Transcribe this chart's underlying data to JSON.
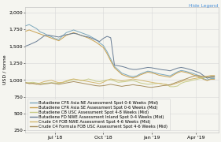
{
  "hide_legend_text": "Hide Legend",
  "ylabel": "USD / tonne",
  "yticks": [
    250,
    500,
    750,
    1000,
    1250,
    1500,
    1750,
    2000
  ],
  "ylim": [
    220,
    2080
  ],
  "xtick_labels": [
    "Jul '18",
    "Oct '18",
    "Jan '19",
    "Apr '19"
  ],
  "xtick_positions": [
    8,
    21,
    34,
    46
  ],
  "xlim": [
    0,
    52
  ],
  "background_color": "#f5f5f0",
  "plot_bg_color": "#f5f5f0",
  "grid_color": "#d8d8d8",
  "series": [
    {
      "label": "Butadiene CFR Asia NE Assessment Spot 0-6 Weeks (Mid)",
      "color": "#7ba7bc",
      "linewidth": 0.7,
      "data_x": [
        0,
        1,
        2,
        3,
        4,
        5,
        6,
        7,
        8,
        9,
        10,
        11,
        12,
        13,
        14,
        15,
        16,
        17,
        18,
        19,
        20,
        21,
        22,
        23,
        24,
        25,
        26,
        27,
        28,
        29,
        30,
        31,
        32,
        33,
        34,
        35,
        36,
        37,
        38,
        39,
        40,
        41,
        42,
        43,
        44,
        45,
        46,
        47,
        48,
        49,
        50,
        51
      ],
      "data_y": [
        1800,
        1820,
        1790,
        1760,
        1710,
        1690,
        1660,
        1640,
        1610,
        1600,
        1650,
        1700,
        1720,
        1740,
        1720,
        1700,
        1680,
        1660,
        1630,
        1600,
        1550,
        1510,
        1420,
        1310,
        1200,
        1150,
        1100,
        1080,
        1060,
        1050,
        1060,
        1090,
        1110,
        1130,
        1120,
        1105,
        1090,
        1080,
        1070,
        1060,
        1090,
        1120,
        1140,
        1130,
        1115,
        1100,
        1080,
        1060,
        1020,
        1000,
        1020,
        1020
      ]
    },
    {
      "label": "Butadiene CFR Asia SE Assessment Spot 0-6 Weeks (Mid)",
      "color": "#c8a050",
      "linewidth": 0.7,
      "data_x": [
        0,
        1,
        2,
        3,
        4,
        5,
        6,
        7,
        8,
        9,
        10,
        11,
        12,
        13,
        14,
        15,
        16,
        17,
        18,
        19,
        20,
        21,
        22,
        23,
        24,
        25,
        26,
        27,
        28,
        29,
        30,
        31,
        32,
        33,
        34,
        35,
        36,
        37,
        38,
        39,
        40,
        41,
        42,
        43,
        44,
        45,
        46,
        47,
        48,
        49,
        50,
        51
      ],
      "data_y": [
        1720,
        1740,
        1720,
        1700,
        1680,
        1660,
        1640,
        1620,
        1600,
        1580,
        1620,
        1660,
        1680,
        1700,
        1680,
        1660,
        1640,
        1620,
        1590,
        1560,
        1520,
        1480,
        1390,
        1280,
        1180,
        1130,
        1080,
        1060,
        1040,
        1030,
        1045,
        1075,
        1095,
        1115,
        1105,
        1090,
        1070,
        1060,
        1050,
        1040,
        1075,
        1105,
        1125,
        1115,
        1100,
        1080,
        1060,
        1040,
        1010,
        990,
        1010,
        1010
      ]
    },
    {
      "label": "Butadiene CB USC Assessment Spot 4-8 Weeks (Mid)",
      "color": "#c8cc88",
      "linewidth": 0.7,
      "data_x": [
        0,
        1,
        2,
        3,
        4,
        5,
        6,
        7,
        8,
        9,
        10,
        11,
        12,
        13,
        14,
        15,
        16,
        17,
        18,
        19,
        20,
        21,
        22,
        23,
        24,
        25,
        26,
        27,
        28,
        29,
        30,
        31,
        32,
        33,
        34,
        35,
        36,
        37,
        38,
        39,
        40,
        41,
        42,
        43,
        44,
        45,
        46,
        47,
        48,
        49,
        50,
        51
      ],
      "data_y": [
        960,
        960,
        965,
        955,
        945,
        950,
        955,
        960,
        955,
        950,
        960,
        975,
        990,
        1005,
        1000,
        990,
        1000,
        1015,
        1000,
        980,
        975,
        985,
        1000,
        1000,
        985,
        965,
        970,
        975,
        985,
        990,
        975,
        955,
        945,
        935,
        940,
        945,
        950,
        940,
        935,
        900,
        900,
        910,
        950,
        970,
        980,
        995,
        1005,
        1020,
        1035,
        1035,
        1035,
        1040
      ]
    },
    {
      "label": "Butadiene FD NWE Assessment Inland Spot 0-4 Weeks (Mid)",
      "color": "#687c94",
      "linewidth": 0.7,
      "data_x": [
        0,
        1,
        2,
        3,
        4,
        5,
        6,
        7,
        8,
        9,
        10,
        11,
        12,
        13,
        14,
        15,
        16,
        17,
        18,
        19,
        20,
        21,
        22,
        23,
        24,
        25,
        26,
        27,
        28,
        29,
        30,
        31,
        32,
        33,
        34,
        35,
        36,
        37,
        38,
        39,
        40,
        41,
        42,
        43,
        44,
        45,
        46,
        47,
        48,
        49,
        50,
        51
      ],
      "data_y": [
        1500,
        1520,
        1545,
        1570,
        1610,
        1650,
        1665,
        1655,
        1645,
        1635,
        1655,
        1670,
        1680,
        1690,
        1680,
        1660,
        1645,
        1635,
        1615,
        1590,
        1570,
        1615,
        1645,
        1625,
        1220,
        1210,
        1200,
        1185,
        1165,
        1155,
        1155,
        1165,
        1175,
        1185,
        1180,
        1170,
        1160,
        1150,
        1145,
        1135,
        1155,
        1175,
        1185,
        1175,
        1160,
        1145,
        1125,
        1105,
        1065,
        1025,
        1040,
        1040
      ]
    },
    {
      "label": "Crude C4 FOB NWE Assessment Spot 4-6 Weeks (Mid)",
      "color": "#d4b870",
      "linewidth": 0.7,
      "data_x": [
        0,
        1,
        2,
        3,
        4,
        5,
        6,
        7,
        8,
        9,
        10,
        11,
        12,
        13,
        14,
        15,
        16,
        17,
        18,
        19,
        20,
        21,
        22,
        23,
        24,
        25,
        26,
        27,
        28,
        29,
        30,
        31,
        32,
        33,
        34,
        35,
        36,
        37,
        38,
        39,
        40,
        41,
        42,
        43,
        44,
        45,
        46,
        47,
        48,
        49,
        50,
        51
      ],
      "data_y": [
        955,
        950,
        945,
        935,
        955,
        975,
        985,
        995,
        975,
        960,
        965,
        985,
        1005,
        1015,
        1005,
        995,
        985,
        975,
        965,
        955,
        945,
        965,
        995,
        1015,
        1005,
        995,
        985,
        995,
        1005,
        1015,
        1005,
        995,
        985,
        975,
        965,
        955,
        950,
        940,
        930,
        920,
        935,
        955,
        975,
        995,
        1005,
        1015,
        1025,
        1035,
        1045,
        1055,
        1065,
        1065
      ]
    },
    {
      "label": "Crude C4 Formula FOB USC Assessment Spot 4-6 Weeks (Mid)",
      "color": "#a89060",
      "linewidth": 0.7,
      "data_x": [
        0,
        1,
        2,
        3,
        4,
        5,
        6,
        7,
        8,
        9,
        10,
        11,
        12,
        13,
        14,
        15,
        16,
        17,
        18,
        19,
        20,
        21,
        22,
        23,
        24,
        25,
        26,
        27,
        28,
        29,
        30,
        31,
        32,
        33,
        34,
        35,
        36,
        37,
        38,
        39,
        40,
        41,
        42,
        43,
        44,
        45,
        46,
        47,
        48,
        49,
        50,
        51
      ],
      "data_y": [
        960,
        945,
        950,
        940,
        930,
        940,
        945,
        955,
        945,
        935,
        945,
        955,
        965,
        975,
        965,
        955,
        945,
        935,
        925,
        915,
        910,
        915,
        925,
        935,
        925,
        915,
        905,
        915,
        920,
        930,
        920,
        915,
        905,
        895,
        890,
        898,
        905,
        915,
        920,
        930,
        950,
        970,
        990,
        1010,
        1030,
        1050,
        1065,
        1060,
        1050,
        1045,
        1055,
        1055
      ]
    }
  ],
  "legend_fontsize": 3.8,
  "axis_fontsize": 4.5,
  "tick_fontsize": 4.5
}
